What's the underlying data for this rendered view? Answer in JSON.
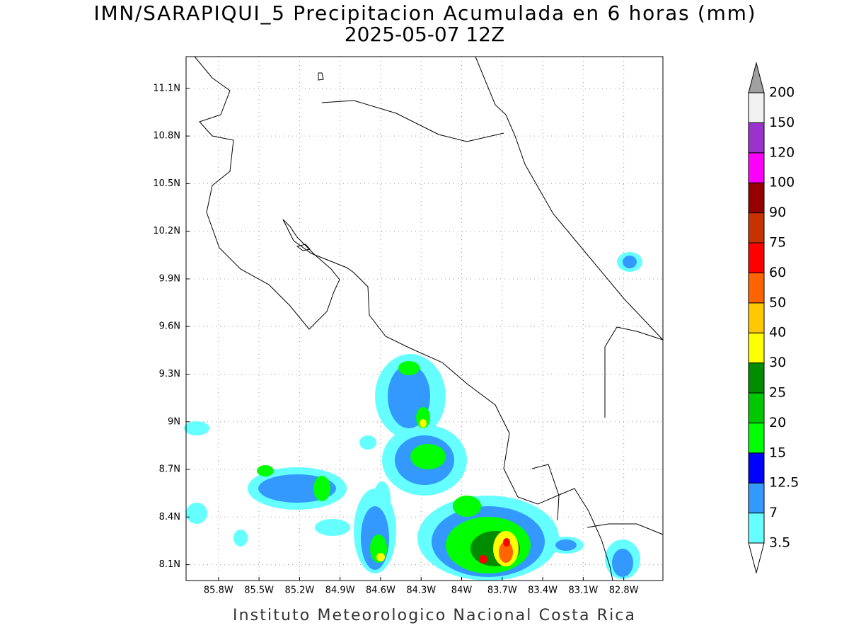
{
  "map": {
    "title": "IMN/SARAPIQUI_5 Precipitacion Acumulada en 6 horas (mm)",
    "subtitle": "2025-05-07 12Z",
    "footer": "Instituto Meteorologico Nacional Costa Rica",
    "lonlim": [
      -86.04,
      -82.51
    ],
    "latlim": [
      8.0,
      11.3
    ],
    "lon_ticks": [
      {
        "value": -85.8,
        "label": "85.8W"
      },
      {
        "value": -85.5,
        "label": "85.5W"
      },
      {
        "value": -85.2,
        "label": "85.2W"
      },
      {
        "value": -84.9,
        "label": "84.9W"
      },
      {
        "value": -84.6,
        "label": "84.6W"
      },
      {
        "value": -84.3,
        "label": "84.3W"
      },
      {
        "value": -84.0,
        "label": "84W"
      },
      {
        "value": -83.7,
        "label": "83.7W"
      },
      {
        "value": -83.4,
        "label": "83.4W"
      },
      {
        "value": -83.1,
        "label": "83.1W"
      },
      {
        "value": -82.8,
        "label": "82.8W"
      }
    ],
    "lat_ticks": [
      {
        "value": 8.1,
        "label": "8.1N"
      },
      {
        "value": 8.4,
        "label": "8.4N"
      },
      {
        "value": 8.7,
        "label": "8.7N"
      },
      {
        "value": 9.0,
        "label": "9N"
      },
      {
        "value": 9.3,
        "label": "9.3N"
      },
      {
        "value": 9.6,
        "label": "9.6N"
      },
      {
        "value": 9.9,
        "label": "9.9N"
      },
      {
        "value": 10.2,
        "label": "10.2N"
      },
      {
        "value": 10.5,
        "label": "10.5N"
      },
      {
        "value": 10.8,
        "label": "10.8N"
      },
      {
        "value": 11.1,
        "label": "11.1N"
      }
    ],
    "grid": true,
    "colorbar": {
      "levels": [
        3.5,
        7,
        12.5,
        15,
        20,
        25,
        30,
        40,
        50,
        60,
        75,
        90,
        100,
        120,
        150,
        200
      ],
      "colors": [
        "#66ffff",
        "#3399ff",
        "#0000ff",
        "#00ff00",
        "#00c800",
        "#008c00",
        "#ffff00",
        "#ffc800",
        "#ff6400",
        "#ff0000",
        "#c83200",
        "#960000",
        "#ff00ff",
        "#9933cc",
        "#f2f2f2"
      ],
      "under_color": "#ffffff",
      "over_color": "#a0a0a0"
    }
  }
}
